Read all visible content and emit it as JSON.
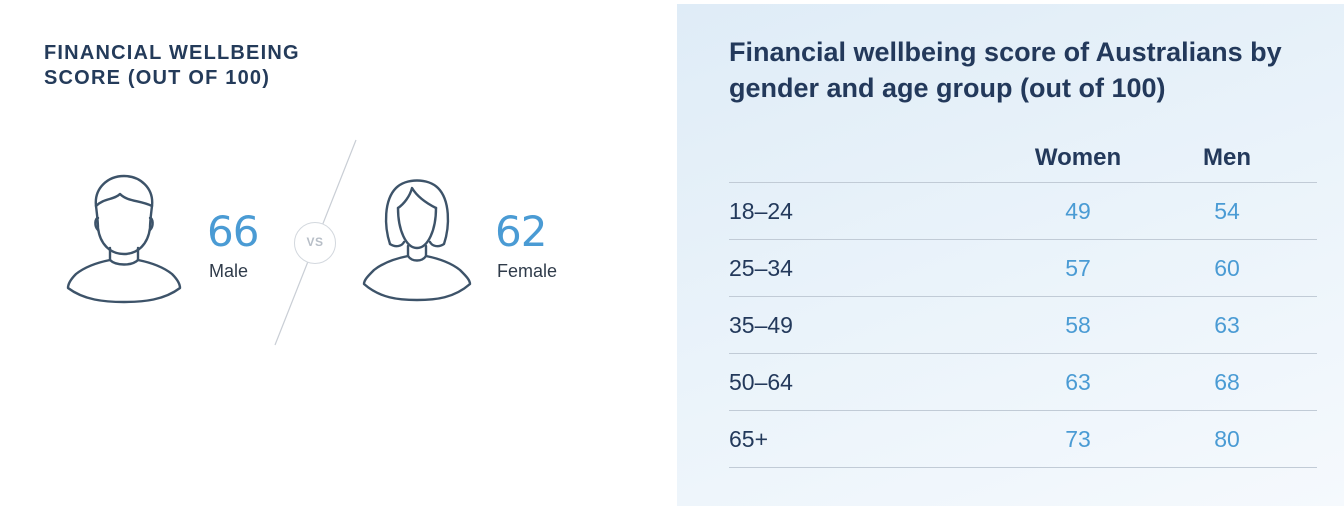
{
  "summary": {
    "title_lines": [
      "FINANCIAL WELLBEING",
      "SCORE (OUT OF 100)"
    ],
    "male": {
      "score": "66",
      "label": "Male",
      "icon": "male-person-icon"
    },
    "female": {
      "score": "62",
      "label": "Female",
      "icon": "female-person-icon"
    },
    "vs_label": "VS"
  },
  "table": {
    "title": "Financial wellbeing score of Australians by gender and age group (out of 100)",
    "headers": [
      "",
      "Women",
      "Men"
    ]
  },
  "colors": {
    "heading": "#23395b",
    "value_blue": "#4a9bd4",
    "panel_bg": "#e6f0f8",
    "rule": "#c1cbd6"
  },
  "chart_data": [
    {
      "type": "bar",
      "title": "FINANCIAL WELLBEING SCORE (OUT OF 100)",
      "categories": [
        "Male",
        "Female"
      ],
      "values": [
        66,
        62
      ]
    },
    {
      "type": "table",
      "title": "Financial wellbeing score of Australians by gender and age group (out of 100)",
      "categories": [
        "18–24",
        "25–34",
        "35–49",
        "50–64",
        "65+"
      ],
      "series": [
        {
          "name": "Women",
          "values": [
            49,
            57,
            58,
            63,
            73
          ]
        },
        {
          "name": "Men",
          "values": [
            54,
            60,
            63,
            68,
            80
          ]
        }
      ]
    }
  ]
}
